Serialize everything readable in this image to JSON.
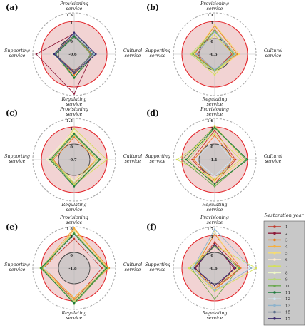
{
  "legend": {
    "title": "Restoration year",
    "entries": [
      {
        "label": "1",
        "color": "#c0392b"
      },
      {
        "label": "2",
        "color": "#8e1b3b"
      },
      {
        "label": "3",
        "color": "#e67e22"
      },
      {
        "label": "4",
        "color": "#f5b041"
      },
      {
        "label": "5",
        "color": "#f7dc6f"
      },
      {
        "label": "6",
        "color": "#fdebd0"
      },
      {
        "label": "7",
        "color": "#d4e157"
      },
      {
        "label": "8",
        "color": "#eef7c7"
      },
      {
        "label": "9",
        "color": "#b8d87a"
      },
      {
        "label": "10",
        "color": "#6aa84f"
      },
      {
        "label": "11",
        "color": "#1e7a3c"
      },
      {
        "label": "12",
        "color": "#cfe3f0"
      },
      {
        "label": "13",
        "color": "#8fb3cc"
      },
      {
        "label": "15",
        "color": "#5c6f8a"
      },
      {
        "label": "17",
        "color": "#3b2a6e"
      }
    ]
  },
  "axes_labels": {
    "top": [
      "Provisioning",
      "service"
    ],
    "right": [
      "Cultural",
      "service"
    ],
    "bottom": [
      "Regulating",
      "service"
    ],
    "left": [
      "Supporting",
      "service"
    ]
  },
  "chart_data": [
    {
      "type": "radar",
      "label": "(a)",
      "axes": [
        "Provisioning service",
        "Cultural service",
        "Regulating service",
        "Supporting service"
      ],
      "ticks": [
        "1.5",
        "1",
        "0",
        "-0.6"
      ],
      "range": [
        -0.6,
        1.5
      ],
      "series": [
        {
          "name": "1",
          "values": [
            0.25,
            0.2,
            0.1,
            0.2
          ]
        },
        {
          "name": "2",
          "values": [
            0.3,
            0.15,
            1.4,
            1.3
          ]
        },
        {
          "name": "3",
          "values": [
            0.2,
            0.1,
            0.3,
            0.25
          ]
        },
        {
          "name": "6",
          "values": [
            0.25,
            0.2,
            0.4,
            0.35
          ]
        },
        {
          "name": "10",
          "values": [
            0.15,
            0.05,
            0.5,
            0.2
          ]
        },
        {
          "name": "11",
          "values": [
            0.1,
            0.3,
            0.45,
            0.15
          ]
        },
        {
          "name": "13",
          "values": [
            0.3,
            0.25,
            0.2,
            0.3
          ]
        },
        {
          "name": "15",
          "values": [
            0.2,
            0.15,
            0.15,
            0.2
          ]
        },
        {
          "name": "17",
          "values": [
            0.35,
            0.35,
            0.2,
            0.25
          ]
        }
      ]
    },
    {
      "type": "radar",
      "label": "(b)",
      "axes": [
        "Provisioning service",
        "Cultural service",
        "Regulating service",
        "Supporting service"
      ],
      "ticks": [
        "1.1",
        "1",
        "0",
        "-0.5"
      ],
      "range": [
        -0.5,
        1.1
      ],
      "series": [
        {
          "name": "1",
          "values": [
            0.55,
            0.1,
            0.05,
            0.1
          ]
        },
        {
          "name": "3",
          "values": [
            0.75,
            0.4,
            0.05,
            0.25
          ]
        },
        {
          "name": "5",
          "values": [
            0.8,
            0.5,
            0.1,
            0.3
          ]
        },
        {
          "name": "7",
          "values": [
            0.2,
            0.15,
            0.3,
            0.45
          ]
        },
        {
          "name": "9",
          "values": [
            0.5,
            0.3,
            0.1,
            0.5
          ]
        },
        {
          "name": "10",
          "values": [
            0.45,
            0.2,
            0.05,
            0.35
          ]
        },
        {
          "name": "13",
          "values": [
            0.4,
            0.25,
            0.0,
            0.15
          ]
        }
      ]
    },
    {
      "type": "radar",
      "label": "(c)",
      "axes": [
        "Provisioning service",
        "Cultural service",
        "Regulating service",
        "Supporting service"
      ],
      "ticks": [
        "1.5",
        "1",
        "0",
        "-0.7"
      ],
      "range": [
        -0.7,
        1.5
      ],
      "series": [
        {
          "name": "3",
          "values": [
            0.4,
            0.35,
            0.5,
            0.3
          ]
        },
        {
          "name": "5",
          "values": [
            0.7,
            0.35,
            0.3,
            0.5
          ]
        },
        {
          "name": "7",
          "values": [
            0.9,
            1.0,
            0.55,
            0.35
          ]
        },
        {
          "name": "8",
          "values": [
            0.75,
            0.8,
            0.3,
            0.7
          ]
        },
        {
          "name": "9",
          "values": [
            0.5,
            0.45,
            0.45,
            0.45
          ]
        },
        {
          "name": "10",
          "values": [
            0.55,
            0.55,
            0.6,
            0.4
          ]
        },
        {
          "name": "11",
          "values": [
            0.6,
            0.6,
            0.65,
            0.5
          ]
        }
      ]
    },
    {
      "type": "radar",
      "label": "(d)",
      "axes": [
        "Provisioning service",
        "Cultural service",
        "Regulating service",
        "Supporting service"
      ],
      "ticks": [
        "1.6",
        "1",
        "0",
        "-1.1"
      ],
      "range": [
        -1.1,
        1.6
      ],
      "series": [
        {
          "name": "1",
          "values": [
            0.8,
            0.3,
            0.5,
            0.4
          ]
        },
        {
          "name": "3",
          "values": [
            0.5,
            0.2,
            0.3,
            0.3
          ]
        },
        {
          "name": "5",
          "values": [
            1.1,
            0.75,
            0.35,
            0.8
          ]
        },
        {
          "name": "7",
          "values": [
            0.6,
            0.6,
            0.2,
            1.35
          ]
        },
        {
          "name": "9",
          "values": [
            0.9,
            0.95,
            0.6,
            0.6
          ]
        },
        {
          "name": "10",
          "values": [
            1.0,
            0.9,
            0.65,
            1.0
          ]
        },
        {
          "name": "11",
          "values": [
            0.95,
            1.0,
            0.5,
            0.75
          ]
        },
        {
          "name": "12",
          "values": [
            0.3,
            0.1,
            0.05,
            0.2
          ]
        }
      ]
    },
    {
      "type": "radar",
      "label": "(e)",
      "axes": [
        "Provisioning service",
        "Cultural service",
        "Regulating service",
        "Supporting service"
      ],
      "ticks": [
        "1.8",
        "1",
        "0",
        "-1.8"
      ],
      "range": [
        -1.8,
        1.8
      ],
      "series": [
        {
          "name": "1",
          "values": [
            0.8,
            0.7,
            1.0,
            0.9
          ]
        },
        {
          "name": "3",
          "values": [
            1.6,
            1.2,
            0.9,
            0.8
          ]
        },
        {
          "name": "4",
          "values": [
            1.7,
            1.0,
            0.8,
            1.0
          ]
        },
        {
          "name": "5",
          "values": [
            1.5,
            1.1,
            1.1,
            0.9
          ]
        },
        {
          "name": "9",
          "values": [
            1.3,
            0.9,
            1.0,
            1.1
          ]
        },
        {
          "name": "10",
          "values": [
            1.2,
            1.0,
            1.3,
            0.95
          ]
        },
        {
          "name": "11",
          "values": [
            1.1,
            0.95,
            1.2,
            1.05
          ]
        },
        {
          "name": "12",
          "values": [
            1.0,
            0.6,
            0.7,
            0.8
          ]
        }
      ]
    },
    {
      "type": "radar",
      "label": "(f)",
      "axes": [
        "Provisioning service",
        "Cultural service",
        "Regulating service",
        "Supporting service"
      ],
      "ticks": [
        "1.7",
        "1",
        "0",
        "-0.6"
      ],
      "range": [
        -0.6,
        1.7
      ],
      "series": [
        {
          "name": "1",
          "values": [
            0.6,
            0.55,
            0.35,
            0.3
          ]
        },
        {
          "name": "2",
          "values": [
            0.5,
            0.2,
            0.3,
            0.2
          ]
        },
        {
          "name": "3",
          "values": [
            1.1,
            0.6,
            0.35,
            0.25
          ]
        },
        {
          "name": "5",
          "values": [
            1.3,
            0.4,
            0.3,
            0.3
          ]
        },
        {
          "name": "7",
          "values": [
            0.4,
            1.7,
            0.45,
            0.6
          ]
        },
        {
          "name": "10",
          "values": [
            0.35,
            0.5,
            0.9,
            0.45
          ]
        },
        {
          "name": "12",
          "values": [
            1.2,
            1.1,
            0.35,
            0.4
          ]
        },
        {
          "name": "13",
          "values": [
            1.5,
            1.3,
            0.4,
            0.35
          ]
        },
        {
          "name": "17",
          "values": [
            0.45,
            0.3,
            0.1,
            0.25
          ]
        }
      ]
    }
  ]
}
